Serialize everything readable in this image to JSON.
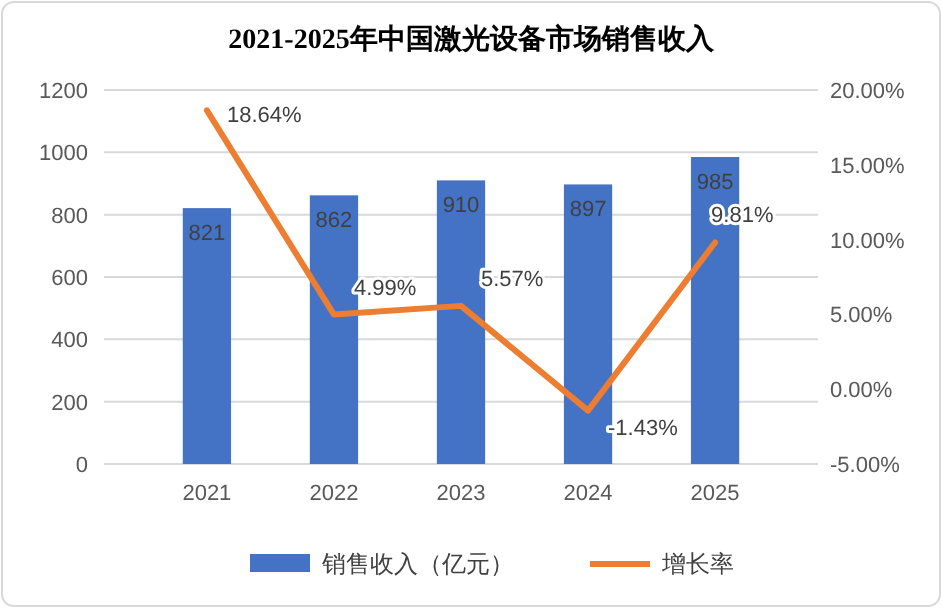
{
  "chart_data": {
    "type": "bar",
    "title": "2021-2025年中国激光设备市场销售收入",
    "categories": [
      "2021",
      "2022",
      "2023",
      "2024",
      "2025"
    ],
    "series": [
      {
        "name": "销售收入（亿元）",
        "color": "#4472c4",
        "values": [
          821,
          862,
          910,
          897,
          985
        ],
        "value_labels": [
          "821",
          "862",
          "910",
          "897",
          "985"
        ]
      },
      {
        "name": "增长率",
        "type": "line",
        "axis": "y2",
        "color": "#ed7d31",
        "values": [
          18.64,
          4.99,
          5.57,
          -1.43,
          9.81
        ],
        "value_labels": [
          "18.64%",
          "4.99%",
          "5.57%",
          "-1.43%",
          "9.81%"
        ],
        "marker": "none"
      }
    ],
    "ylim": [
      0,
      1200
    ],
    "yticks": [
      0,
      200,
      400,
      600,
      800,
      1000,
      1200
    ],
    "y2lim": [
      -5,
      20
    ],
    "y2ticks": [
      {
        "value": -5,
        "label": "-5.00%"
      },
      {
        "value": 0,
        "label": "0.00%"
      },
      {
        "value": 5,
        "label": "5.00%"
      },
      {
        "value": 10,
        "label": "10.00%"
      },
      {
        "value": 15,
        "label": "15.00%"
      },
      {
        "value": 20,
        "label": "20.00%"
      }
    ],
    "grid": "y",
    "legend": "bottom"
  }
}
